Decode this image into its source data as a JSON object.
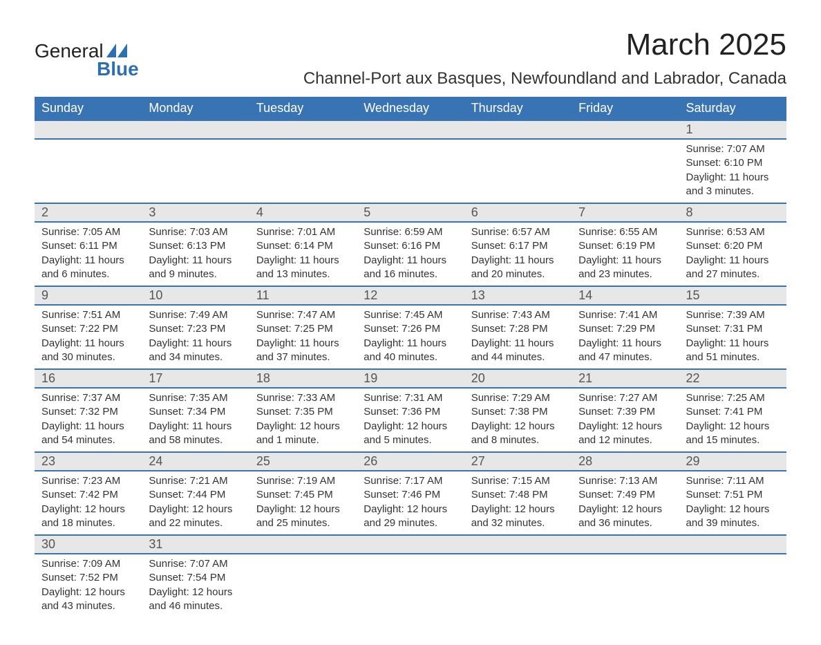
{
  "logo": {
    "text_top": "General",
    "text_bottom": "Blue"
  },
  "title": "March 2025",
  "location": "Channel-Port aux Basques, Newfoundland and Labrador, Canada",
  "weekdays": [
    "Sunday",
    "Monday",
    "Tuesday",
    "Wednesday",
    "Thursday",
    "Friday",
    "Saturday"
  ],
  "colors": {
    "header_bg": "#3873b3",
    "header_text": "#ffffff",
    "daynum_bg": "#e7e7e7",
    "row_border": "#3873b3",
    "logo_accent": "#2e6fb1",
    "text": "#333333",
    "background": "#ffffff"
  },
  "typography": {
    "title_fontsize": 44,
    "location_fontsize": 24,
    "weekday_fontsize": 18,
    "daynum_fontsize": 18,
    "body_fontsize": 15,
    "font_family": "Arial"
  },
  "layout": {
    "columns": 7,
    "rows": 6,
    "start_weekday_index": 6
  },
  "labels": {
    "sunrise": "Sunrise:",
    "sunset": "Sunset:",
    "daylight": "Daylight:"
  },
  "weeks": [
    [
      null,
      null,
      null,
      null,
      null,
      null,
      {
        "day": "1",
        "sunrise": "7:07 AM",
        "sunset": "6:10 PM",
        "daylight": "11 hours and 3 minutes."
      }
    ],
    [
      {
        "day": "2",
        "sunrise": "7:05 AM",
        "sunset": "6:11 PM",
        "daylight": "11 hours and 6 minutes."
      },
      {
        "day": "3",
        "sunrise": "7:03 AM",
        "sunset": "6:13 PM",
        "daylight": "11 hours and 9 minutes."
      },
      {
        "day": "4",
        "sunrise": "7:01 AM",
        "sunset": "6:14 PM",
        "daylight": "11 hours and 13 minutes."
      },
      {
        "day": "5",
        "sunrise": "6:59 AM",
        "sunset": "6:16 PM",
        "daylight": "11 hours and 16 minutes."
      },
      {
        "day": "6",
        "sunrise": "6:57 AM",
        "sunset": "6:17 PM",
        "daylight": "11 hours and 20 minutes."
      },
      {
        "day": "7",
        "sunrise": "6:55 AM",
        "sunset": "6:19 PM",
        "daylight": "11 hours and 23 minutes."
      },
      {
        "day": "8",
        "sunrise": "6:53 AM",
        "sunset": "6:20 PM",
        "daylight": "11 hours and 27 minutes."
      }
    ],
    [
      {
        "day": "9",
        "sunrise": "7:51 AM",
        "sunset": "7:22 PM",
        "daylight": "11 hours and 30 minutes."
      },
      {
        "day": "10",
        "sunrise": "7:49 AM",
        "sunset": "7:23 PM",
        "daylight": "11 hours and 34 minutes."
      },
      {
        "day": "11",
        "sunrise": "7:47 AM",
        "sunset": "7:25 PM",
        "daylight": "11 hours and 37 minutes."
      },
      {
        "day": "12",
        "sunrise": "7:45 AM",
        "sunset": "7:26 PM",
        "daylight": "11 hours and 40 minutes."
      },
      {
        "day": "13",
        "sunrise": "7:43 AM",
        "sunset": "7:28 PM",
        "daylight": "11 hours and 44 minutes."
      },
      {
        "day": "14",
        "sunrise": "7:41 AM",
        "sunset": "7:29 PM",
        "daylight": "11 hours and 47 minutes."
      },
      {
        "day": "15",
        "sunrise": "7:39 AM",
        "sunset": "7:31 PM",
        "daylight": "11 hours and 51 minutes."
      }
    ],
    [
      {
        "day": "16",
        "sunrise": "7:37 AM",
        "sunset": "7:32 PM",
        "daylight": "11 hours and 54 minutes."
      },
      {
        "day": "17",
        "sunrise": "7:35 AM",
        "sunset": "7:34 PM",
        "daylight": "11 hours and 58 minutes."
      },
      {
        "day": "18",
        "sunrise": "7:33 AM",
        "sunset": "7:35 PM",
        "daylight": "12 hours and 1 minute."
      },
      {
        "day": "19",
        "sunrise": "7:31 AM",
        "sunset": "7:36 PM",
        "daylight": "12 hours and 5 minutes."
      },
      {
        "day": "20",
        "sunrise": "7:29 AM",
        "sunset": "7:38 PM",
        "daylight": "12 hours and 8 minutes."
      },
      {
        "day": "21",
        "sunrise": "7:27 AM",
        "sunset": "7:39 PM",
        "daylight": "12 hours and 12 minutes."
      },
      {
        "day": "22",
        "sunrise": "7:25 AM",
        "sunset": "7:41 PM",
        "daylight": "12 hours and 15 minutes."
      }
    ],
    [
      {
        "day": "23",
        "sunrise": "7:23 AM",
        "sunset": "7:42 PM",
        "daylight": "12 hours and 18 minutes."
      },
      {
        "day": "24",
        "sunrise": "7:21 AM",
        "sunset": "7:44 PM",
        "daylight": "12 hours and 22 minutes."
      },
      {
        "day": "25",
        "sunrise": "7:19 AM",
        "sunset": "7:45 PM",
        "daylight": "12 hours and 25 minutes."
      },
      {
        "day": "26",
        "sunrise": "7:17 AM",
        "sunset": "7:46 PM",
        "daylight": "12 hours and 29 minutes."
      },
      {
        "day": "27",
        "sunrise": "7:15 AM",
        "sunset": "7:48 PM",
        "daylight": "12 hours and 32 minutes."
      },
      {
        "day": "28",
        "sunrise": "7:13 AM",
        "sunset": "7:49 PM",
        "daylight": "12 hours and 36 minutes."
      },
      {
        "day": "29",
        "sunrise": "7:11 AM",
        "sunset": "7:51 PM",
        "daylight": "12 hours and 39 minutes."
      }
    ],
    [
      {
        "day": "30",
        "sunrise": "7:09 AM",
        "sunset": "7:52 PM",
        "daylight": "12 hours and 43 minutes."
      },
      {
        "day": "31",
        "sunrise": "7:07 AM",
        "sunset": "7:54 PM",
        "daylight": "12 hours and 46 minutes."
      },
      null,
      null,
      null,
      null,
      null
    ]
  ]
}
